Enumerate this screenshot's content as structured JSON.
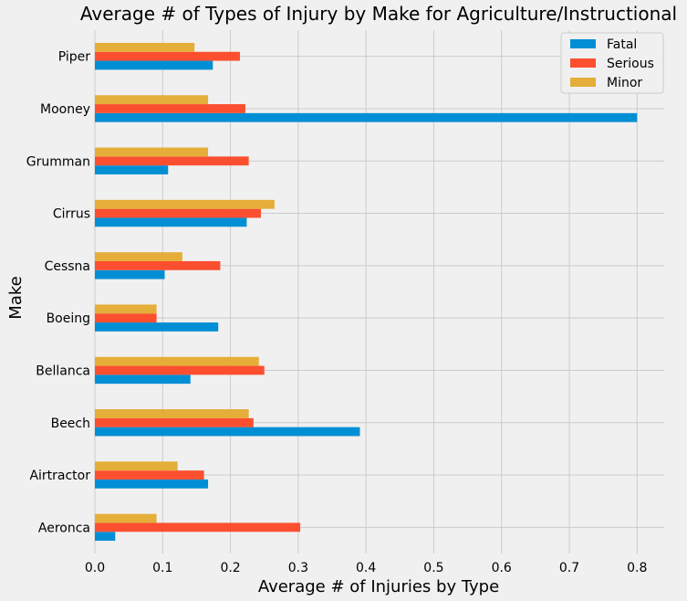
{
  "chart_data": {
    "type": "bar",
    "orientation": "horizontal",
    "title": "Average # of Types of Injury by Make for Agriculture/Instructional",
    "xlabel": "Average # of Injuries by Type",
    "ylabel": "Make",
    "xlim": [
      0,
      0.84
    ],
    "xticks": [
      "0.0",
      "0.1",
      "0.2",
      "0.3",
      "0.4",
      "0.5",
      "0.6",
      "0.7",
      "0.8"
    ],
    "grid": true,
    "legend_position": "top-right",
    "categories": [
      "Aeronca",
      "Airtractor",
      "Beech",
      "Bellanca",
      "Boeing",
      "Cessna",
      "Cirrus",
      "Grumman",
      "Mooney",
      "Piper"
    ],
    "series": [
      {
        "name": "Fatal",
        "color": "#008fd5",
        "values": [
          0.03,
          0.167,
          0.391,
          0.141,
          0.182,
          0.103,
          0.224,
          0.108,
          0.8,
          0.174
        ]
      },
      {
        "name": "Serious",
        "color": "#fc4f30",
        "values": [
          0.303,
          0.161,
          0.234,
          0.25,
          0.091,
          0.185,
          0.245,
          0.227,
          0.222,
          0.214
        ]
      },
      {
        "name": "Minor",
        "color": "#e5ae38",
        "values": [
          0.091,
          0.122,
          0.227,
          0.242,
          0.091,
          0.129,
          0.265,
          0.167,
          0.167,
          0.147
        ]
      }
    ]
  }
}
